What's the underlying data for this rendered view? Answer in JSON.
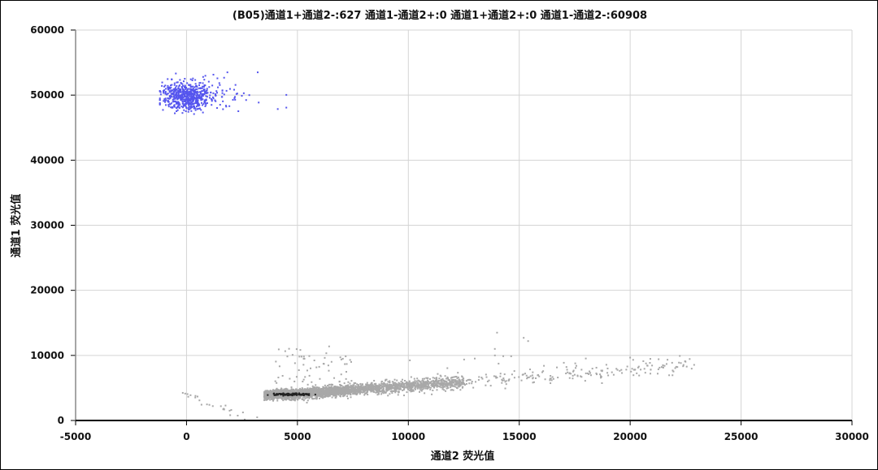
{
  "chart_data": {
    "type": "scatter",
    "title": "(B05)通道1+通道2-:627   通道1-通道2+:0   通道1+通道2+:0   通道1-通道2-:60908",
    "xlabel": "通道2  荧光值",
    "ylabel": "通道1  荧光值",
    "xlim": [
      -5000,
      30000
    ],
    "ylim": [
      0,
      60000
    ],
    "xticks": [
      "-5000",
      "0",
      "5000",
      "10000",
      "15000",
      "20000",
      "25000",
      "30000"
    ],
    "yticks": [
      "0",
      "10000",
      "20000",
      "30000",
      "40000",
      "50000",
      "60000"
    ],
    "grid": true,
    "series": [
      {
        "name": "通道1+通道2-",
        "count": 627,
        "color": "#5555ee",
        "center": [
          0,
          49800
        ],
        "x_range": [
          -1200,
          4500
        ],
        "y_range": [
          45500,
          53500
        ]
      },
      {
        "name": "通道1-通道2-",
        "count": 60908,
        "color": "#a8a8a8",
        "core_color": "#222222",
        "trend": [
          [
            3500,
            3900
          ],
          [
            5000,
            4100
          ],
          [
            10000,
            5300
          ],
          [
            15000,
            6500
          ],
          [
            20000,
            7800
          ],
          [
            23000,
            8600
          ]
        ],
        "core": [
          4800,
          4000
        ]
      }
    ]
  }
}
